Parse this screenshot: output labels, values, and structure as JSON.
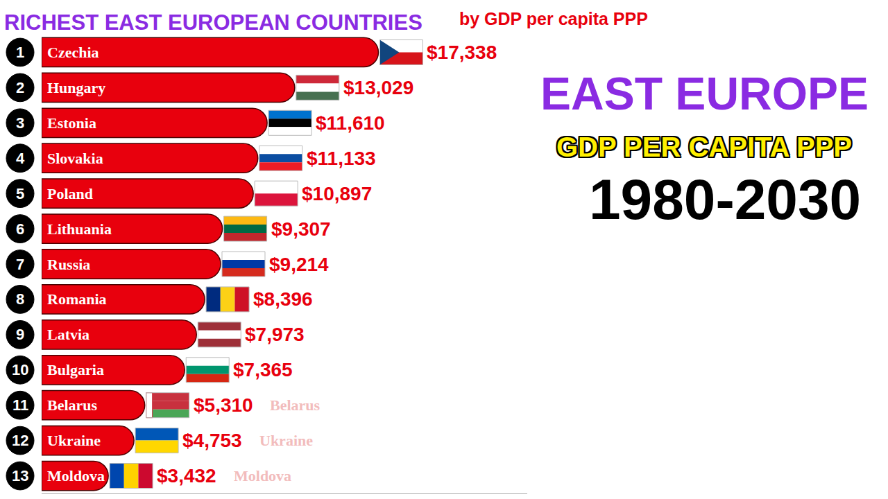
{
  "chart_data": {
    "type": "bar",
    "orientation": "horizontal",
    "title": "RICHEST EAST EUROPEAN COUNTRIES",
    "subtitle": "by GDP per capita PPP",
    "categories": [
      "Czechia",
      "Hungary",
      "Estonia",
      "Slovakia",
      "Poland",
      "Lithuania",
      "Russia",
      "Romania",
      "Latvia",
      "Bulgaria",
      "Belarus",
      "Ukraine",
      "Moldova"
    ],
    "values": [
      17338,
      13029,
      11610,
      11133,
      10897,
      9307,
      9214,
      8396,
      7973,
      7365,
      5310,
      4753,
      3432
    ],
    "value_labels": [
      "$17,338",
      "$13,029",
      "$11,610",
      "$11,133",
      "$10,897",
      "$9,307",
      "$9,214",
      "$8,396",
      "$7,973",
      "$7,365",
      "$5,310",
      "$4,753",
      "$3,432"
    ],
    "ranks": [
      1,
      2,
      3,
      4,
      5,
      6,
      7,
      8,
      9,
      10,
      11,
      12,
      13
    ],
    "color": "#e8000d",
    "xlim": [
      0,
      25000
    ],
    "xticks": [],
    "grid": false,
    "tick_labels": false,
    "data_labels": true,
    "annotations": [
      {
        "text": "EAST EUROPE"
      },
      {
        "text": "GDP PER CAPITA PPP"
      },
      {
        "text": "1980-2030"
      },
      {
        "text": "Belarus",
        "category": "Belarus"
      },
      {
        "text": "Ukraine",
        "category": "Ukraine"
      },
      {
        "text": "Moldova",
        "category": "Moldova"
      }
    ]
  }
}
